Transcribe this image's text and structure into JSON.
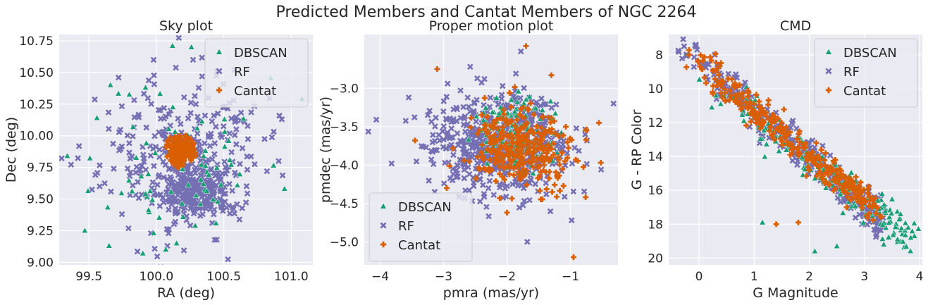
{
  "figure": {
    "suptitle": "Predicted Members and Cantat Members of NGC 2264"
  },
  "colors": {
    "DBSCAN": "#1b9e77",
    "RF": "#7570b3",
    "Cantat": "#d95f02",
    "axes_bg": "#eaeaf2",
    "grid": "#ffffff"
  },
  "chart_data": [
    {
      "type": "scatter",
      "title": "Sky plot",
      "xlabel": "RA (deg)",
      "ylabel": "Dec (deg)",
      "xlim": [
        99.28,
        101.16
      ],
      "ylim": [
        8.98,
        10.8
      ],
      "x_ticks": [
        99.5,
        100.0,
        100.5,
        101.0
      ],
      "x_tick_labels": [
        "99.5",
        "100.0",
        "100.5",
        "101.0"
      ],
      "y_ticks": [
        9.0,
        9.25,
        9.5,
        9.75,
        10.0,
        10.25,
        10.5,
        10.75
      ],
      "y_tick_labels": [
        "9.00",
        "9.25",
        "9.50",
        "9.75",
        "10.00",
        "10.25",
        "10.50",
        "10.75"
      ],
      "grid": true,
      "legend": {
        "placement": "top-right",
        "entries": [
          "DBSCAN",
          "RF",
          "Cantat"
        ]
      },
      "series": [
        {
          "name": "DBSCAN",
          "marker": "triangle",
          "cloud": {
            "cx": 100.2,
            "cy": 9.8,
            "sx": 0.28,
            "sy": 0.33,
            "n": 70,
            "seed": 11
          },
          "points": [
            [
              100.12,
              10.71
            ],
            [
              99.34,
              9.84
            ],
            [
              99.47,
              9.25
            ],
            [
              99.65,
              9.13
            ],
            [
              99.9,
              9.07
            ],
            [
              100.07,
              9.1
            ],
            [
              100.95,
              9.58
            ],
            [
              101.08,
              10.29
            ],
            [
              99.56,
              10.14
            ],
            [
              99.66,
              10.4
            ],
            [
              99.92,
              10.38
            ],
            [
              100.15,
              9.15
            ]
          ]
        },
        {
          "name": "RF",
          "marker": "x",
          "cloud": {
            "cx": 100.18,
            "cy": 9.85,
            "sx": 0.3,
            "sy": 0.3,
            "n": 300,
            "seed": 23
          },
          "cloud2": {
            "cx": 100.28,
            "cy": 9.55,
            "sx": 0.14,
            "sy": 0.1,
            "n": 260,
            "seed": 31
          },
          "points": [
            [
              100.82,
              9.72
            ],
            [
              100.93,
              10.13
            ],
            [
              100.58,
              10.52
            ],
            [
              99.72,
              10.46
            ],
            [
              99.58,
              9.6
            ],
            [
              99.98,
              10.6
            ]
          ]
        },
        {
          "name": "Cantat",
          "marker": "plus",
          "cloud": {
            "cx": 100.18,
            "cy": 9.88,
            "sx": 0.06,
            "sy": 0.07,
            "n": 180,
            "seed": 47,
            "clip": 2.0
          }
        }
      ]
    },
    {
      "type": "scatter",
      "title": "Proper motion plot",
      "xlabel": "pmra (mas/yr)",
      "ylabel": "pmdec (mas/yr)",
      "xlim": [
        -4.25,
        -0.25
      ],
      "ylim": [
        -5.3,
        -2.3
      ],
      "x_ticks": [
        -4,
        -3,
        -2,
        -1
      ],
      "x_tick_labels": [
        "−4",
        "−3",
        "−2",
        "−1"
      ],
      "y_ticks": [
        -5.0,
        -4.5,
        -4.0,
        -3.5,
        -3.0
      ],
      "y_tick_labels": [
        "−5.0",
        "−4.5",
        "−4.0",
        "−3.5",
        "−3.0"
      ],
      "grid": true,
      "legend": {
        "placement": "bottom-left",
        "entries": [
          "DBSCAN",
          "RF",
          "Cantat"
        ]
      },
      "series": [
        {
          "name": "DBSCAN",
          "marker": "triangle",
          "cloud": {
            "cx": -1.85,
            "cy": -3.58,
            "sx": 0.42,
            "sy": 0.3,
            "n": 120,
            "seed": 53,
            "clip": 1.9
          }
        },
        {
          "name": "RF",
          "marker": "x",
          "cloud": {
            "cx": -2.1,
            "cy": -3.72,
            "sx": 0.52,
            "sy": 0.32,
            "n": 620,
            "seed": 61
          },
          "points": [
            [
              -4.06,
              -3.41
            ],
            [
              -3.82,
              -3.98
            ],
            [
              -3.55,
              -3.12
            ],
            [
              -1.68,
              -5.0
            ],
            [
              -0.98,
              -4.72
            ],
            [
              -0.32,
              -3.2
            ],
            [
              -2.58,
              -2.72
            ],
            [
              -1.78,
              -2.52
            ]
          ]
        },
        {
          "name": "Cantat",
          "marker": "plus",
          "cloud": {
            "cx": -1.72,
            "cy": -3.78,
            "sx": 0.4,
            "sy": 0.26,
            "n": 320,
            "seed": 73
          },
          "points": [
            [
              -3.1,
              -2.75
            ],
            [
              -1.7,
              -2.45
            ],
            [
              -1.3,
              -2.83
            ],
            [
              -0.95,
              -5.2
            ],
            [
              -3.45,
              -3.68
            ],
            [
              -2.95,
              -4.3
            ],
            [
              -0.55,
              -3.45
            ],
            [
              -0.52,
              -3.97
            ],
            [
              -2.0,
              -4.62
            ]
          ]
        }
      ]
    },
    {
      "type": "scatter",
      "title": "CMD",
      "xlabel": "G Magnitude",
      "ylabel": "G - RP Color",
      "xlim": [
        -0.55,
        4.05
      ],
      "ylim": [
        20.4,
        6.8
      ],
      "y_inverted": true,
      "x_ticks": [
        0,
        1,
        2,
        3,
        4
      ],
      "x_tick_labels": [
        "0",
        "1",
        "2",
        "3",
        "4"
      ],
      "y_ticks": [
        8,
        10,
        12,
        14,
        16,
        18,
        20
      ],
      "y_tick_labels": [
        "8",
        "10",
        "12",
        "14",
        "16",
        "18",
        "20"
      ],
      "grid": true,
      "legend": {
        "placement": "top-right",
        "entries": [
          "DBSCAN",
          "RF",
          "Cantat"
        ]
      },
      "series": [
        {
          "name": "DBSCAN",
          "marker": "triangle",
          "sequence": {
            "x0": -0.1,
            "x1": 3.85,
            "y0": 9.0,
            "y1": 18.8,
            "spread": 0.55,
            "n": 170,
            "seed": 83,
            "bias": 0.55
          },
          "points": [
            [
              3.35,
              19.2
            ],
            [
              3.6,
              18.9
            ],
            [
              3.84,
              18.8
            ],
            [
              2.1,
              19.6
            ],
            [
              2.5,
              19.3
            ],
            [
              1.15,
              17.9
            ]
          ]
        },
        {
          "name": "RF",
          "marker": "x",
          "sequence": {
            "x0": -0.45,
            "x1": 3.3,
            "y0": 7.1,
            "y1": 17.8,
            "spread": 0.55,
            "n": 360,
            "seed": 97,
            "bias": 0.65
          },
          "points": [
            [
              0.4,
              9.2
            ],
            [
              0.55,
              10.4
            ],
            [
              1.6,
              13.6
            ],
            [
              2.4,
              14.8
            ],
            [
              2.8,
              15.6
            ]
          ]
        },
        {
          "name": "Cantat",
          "marker": "plus",
          "sequence": {
            "x0": -0.2,
            "x1": 3.2,
            "y0": 8.0,
            "y1": 17.2,
            "spread": 0.45,
            "n": 330,
            "seed": 109,
            "bias": 0.7
          },
          "points": [
            [
              1.0,
              10.9
            ],
            [
              0.7,
              10.4
            ],
            [
              0.25,
              10.3
            ],
            [
              1.4,
              18.0
            ],
            [
              1.8,
              17.9
            ]
          ]
        }
      ]
    }
  ]
}
